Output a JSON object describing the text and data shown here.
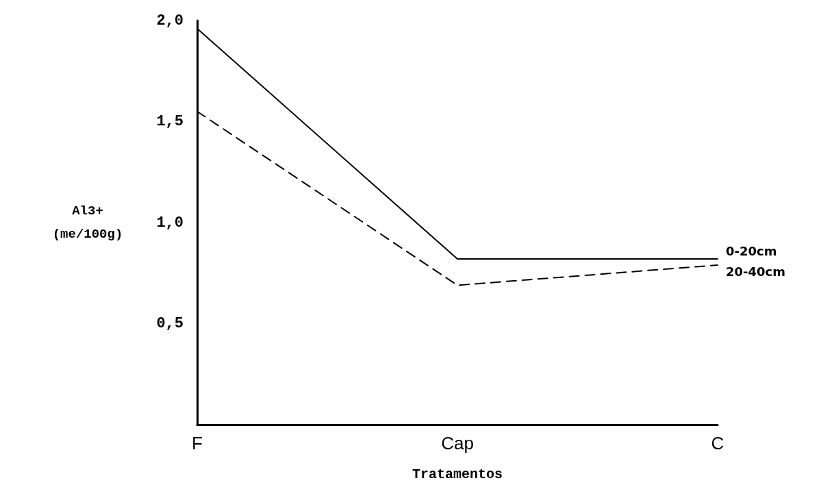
{
  "chart_data": {
    "type": "line",
    "xlabel": "Tratamentos",
    "ylabel": "Al3+ (me/100g)",
    "categories": [
      "F",
      "Cap",
      "C"
    ],
    "series": [
      {
        "name": "0-20cm",
        "color": "#000000",
        "line_style": "solid",
        "values": [
          1.96,
          0.82,
          0.82
        ]
      },
      {
        "name": "20-40cm",
        "color": "#000000",
        "line_style": "dashed",
        "values": [
          1.55,
          0.69,
          0.79
        ]
      }
    ],
    "ylim": [
      0,
      2
    ],
    "yticks": [
      {
        "value": 0.5,
        "label": "0,5"
      },
      {
        "value": 1,
        "label": "1,0"
      },
      {
        "value": 1.5,
        "label": "1,5"
      },
      {
        "value": 2,
        "label": "2,0"
      }
    ],
    "grid": false,
    "legend": false,
    "marker": "none"
  }
}
